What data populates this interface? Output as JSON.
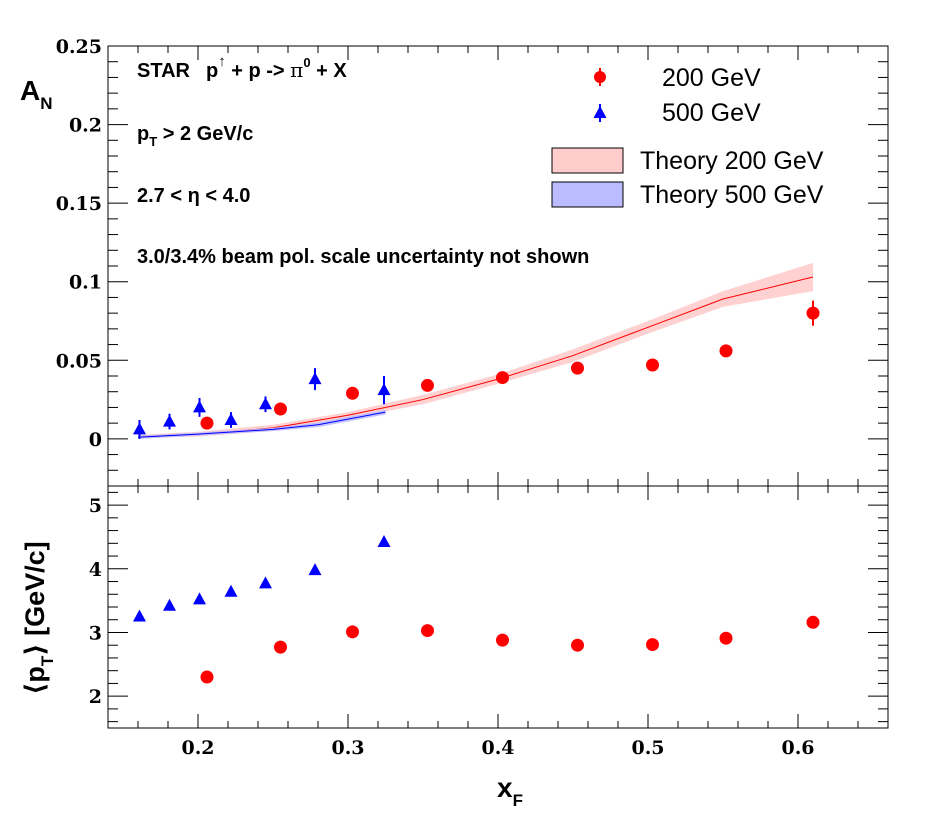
{
  "chart_data": [
    {
      "type": "scatter",
      "panel": "top",
      "ylabel": "A",
      "ylabel_sub": "N",
      "ylim": [
        -0.03,
        0.25
      ],
      "xlim": [
        0.14,
        0.66
      ],
      "yticks": [
        0,
        0.05,
        0.1,
        0.15,
        0.2,
        0.25
      ],
      "ytick_labels": [
        "0",
        "0.05",
        "0.1",
        "0.15",
        "0.2",
        "0.25"
      ],
      "annotations": {
        "line1_star": "STAR",
        "line1_p": "p",
        "line1_arrow": "↑",
        "line1_rest": " + p -> ",
        "line1_pi": "π",
        "line1_pi_sup": "0",
        "line1_end": " + X",
        "line2_p": "p",
        "line2_sub": "T",
        "line2_rest": " > 2 GeV/c",
        "line3": "2.7 < η < 4.0",
        "line4": "3.0/3.4% beam pol. scale uncertainty not shown"
      },
      "legend": {
        "s200": "200 GeV",
        "s500": "500 GeV",
        "t200": "Theory 200 GeV",
        "t500": "Theory 500 GeV"
      },
      "series": [
        {
          "name": "200 GeV",
          "marker": "circle",
          "color": "#ff0000",
          "x": [
            0.206,
            0.255,
            0.303,
            0.353,
            0.403,
            0.453,
            0.503,
            0.552,
            0.61
          ],
          "y": [
            0.01,
            0.019,
            0.029,
            0.034,
            0.039,
            0.045,
            0.047,
            0.056,
            0.08
          ],
          "err": [
            0.003,
            0.003,
            0.003,
            0.003,
            0.003,
            0.003,
            0.003,
            0.004,
            0.008
          ]
        },
        {
          "name": "500 GeV",
          "marker": "triangle",
          "color": "#0000ff",
          "x": [
            0.161,
            0.181,
            0.201,
            0.222,
            0.245,
            0.278,
            0.324
          ],
          "y": [
            0.006,
            0.011,
            0.02,
            0.012,
            0.022,
            0.038,
            0.031
          ],
          "err": [
            0.006,
            0.005,
            0.006,
            0.005,
            0.005,
            0.007,
            0.009
          ]
        },
        {
          "name": "Theory 200 GeV",
          "type": "band",
          "color": "#ff0000",
          "fill": "#ffcccc",
          "x": [
            0.16,
            0.2,
            0.25,
            0.3,
            0.35,
            0.4,
            0.45,
            0.5,
            0.55,
            0.61
          ],
          "y": [
            0.0015,
            0.003,
            0.007,
            0.015,
            0.025,
            0.038,
            0.053,
            0.071,
            0.089,
            0.103
          ],
          "band": [
            0.001,
            0.0015,
            0.002,
            0.002,
            0.003,
            0.003,
            0.004,
            0.004,
            0.005,
            0.009
          ]
        },
        {
          "name": "Theory 500 GeV",
          "type": "band",
          "color": "#0000ff",
          "fill": "#bbbbff",
          "x": [
            0.16,
            0.2,
            0.25,
            0.28,
            0.325
          ],
          "y": [
            0.001,
            0.003,
            0.006,
            0.009,
            0.017
          ],
          "band": [
            0.001,
            0.001,
            0.001,
            0.0015,
            0.0015
          ]
        }
      ]
    },
    {
      "type": "scatter",
      "panel": "bottom",
      "ylabel": "⟨p",
      "ylabel_sub": "T",
      "ylabel_end": "⟩ [GeV/c]",
      "xlabel": "x",
      "xlabel_sub": "F",
      "ylim": [
        1.5,
        5.3
      ],
      "xlim": [
        0.14,
        0.66
      ],
      "yticks": [
        2,
        3,
        4,
        5
      ],
      "ytick_labels": [
        "2",
        "3",
        "4",
        "5"
      ],
      "xticks": [
        0.2,
        0.3,
        0.4,
        0.5,
        0.6
      ],
      "xtick_labels": [
        "0.2",
        "0.3",
        "0.4",
        "0.5",
        "0.6"
      ],
      "series": [
        {
          "name": "200 GeV",
          "marker": "circle",
          "color": "#ff0000",
          "x": [
            0.206,
            0.255,
            0.303,
            0.353,
            0.403,
            0.453,
            0.503,
            0.552,
            0.61
          ],
          "y": [
            2.3,
            2.77,
            3.01,
            3.03,
            2.88,
            2.8,
            2.81,
            2.91,
            3.16
          ]
        },
        {
          "name": "500 GeV",
          "marker": "triangle",
          "color": "#0000ff",
          "x": [
            0.161,
            0.181,
            0.201,
            0.222,
            0.245,
            0.278,
            0.324
          ],
          "y": [
            3.25,
            3.42,
            3.52,
            3.64,
            3.77,
            3.98,
            4.42
          ]
        }
      ]
    }
  ]
}
